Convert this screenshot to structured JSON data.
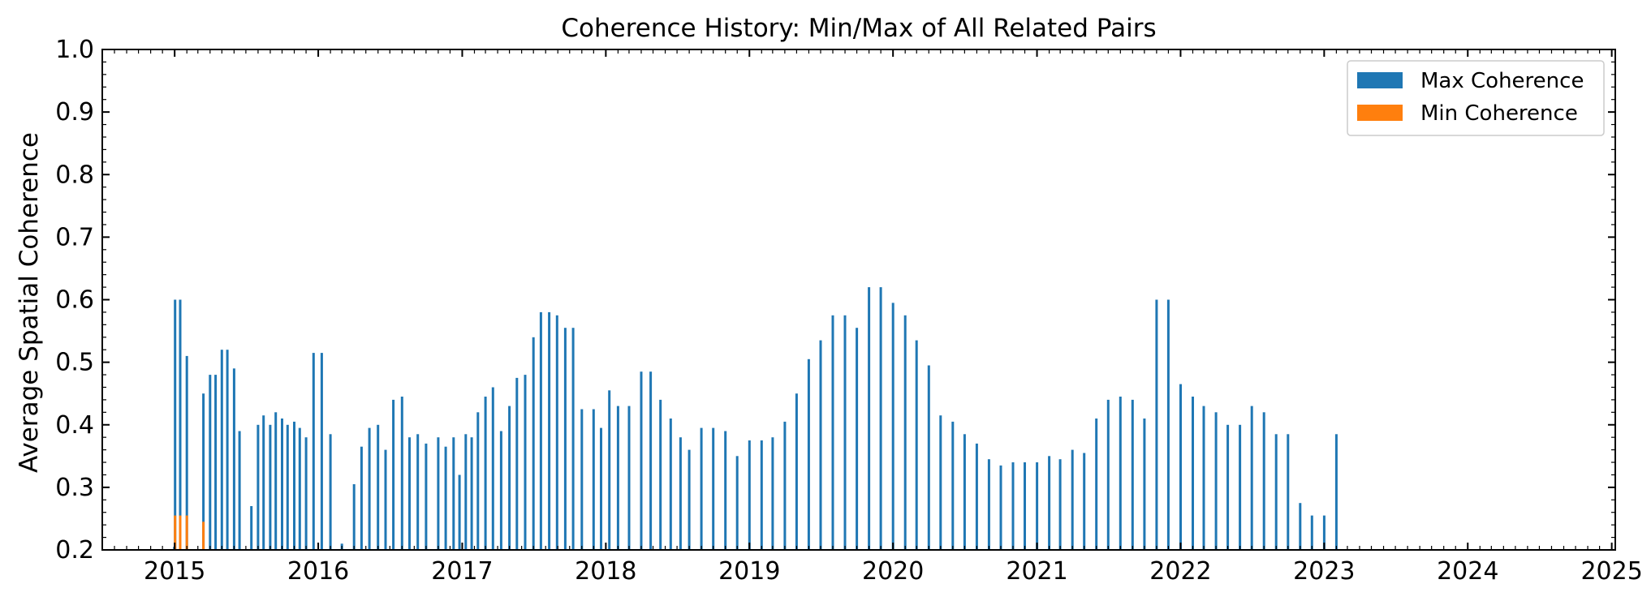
{
  "chart_data": {
    "type": "bar",
    "title": "Coherence History: Min/Max of All Related Pairs",
    "xlabel": "",
    "ylabel": "Average Spatial Coherence",
    "ylim": [
      0.2,
      1.0
    ],
    "xlim": [
      "2014-07-01",
      "2025-01-10"
    ],
    "x_ticks": [
      "2015",
      "2016",
      "2017",
      "2018",
      "2019",
      "2020",
      "2021",
      "2022",
      "2023",
      "2024",
      "2025"
    ],
    "y_ticks": [
      "0.2",
      "0.3",
      "0.4",
      "0.5",
      "0.6",
      "0.7",
      "0.8",
      "0.9",
      "1.0"
    ],
    "grid": false,
    "legend_position": "top-right",
    "colors": {
      "max": "#1f77b4",
      "min": "#ff7f0e"
    },
    "series": [
      {
        "name": "Max Coherence",
        "points": [
          [
            "2014-12-31",
            0.205
          ],
          [
            "2015-01-02",
            0.6
          ],
          [
            "2015-01-15",
            0.6
          ],
          [
            "2015-02-01",
            0.51
          ],
          [
            "2015-03-15",
            0.45
          ],
          [
            "2015-04-01",
            0.48
          ],
          [
            "2015-04-15",
            0.48
          ],
          [
            "2015-05-01",
            0.52
          ],
          [
            "2015-05-15",
            0.52
          ],
          [
            "2015-06-01",
            0.49
          ],
          [
            "2015-06-15",
            0.39
          ],
          [
            "2015-07-15",
            0.27
          ],
          [
            "2015-08-01",
            0.4
          ],
          [
            "2015-08-15",
            0.415
          ],
          [
            "2015-09-01",
            0.4
          ],
          [
            "2015-09-15",
            0.42
          ],
          [
            "2015-10-01",
            0.41
          ],
          [
            "2015-10-15",
            0.4
          ],
          [
            "2015-11-01",
            0.405
          ],
          [
            "2015-11-15",
            0.395
          ],
          [
            "2015-12-01",
            0.38
          ],
          [
            "2015-12-20",
            0.515
          ],
          [
            "2016-01-10",
            0.515
          ],
          [
            "2016-02-01",
            0.385
          ],
          [
            "2016-03-01",
            0.21
          ],
          [
            "2016-04-01",
            0.305
          ],
          [
            "2016-04-20",
            0.365
          ],
          [
            "2016-05-10",
            0.395
          ],
          [
            "2016-06-01",
            0.4
          ],
          [
            "2016-06-20",
            0.36
          ],
          [
            "2016-07-10",
            0.44
          ],
          [
            "2016-08-01",
            0.445
          ],
          [
            "2016-08-20",
            0.38
          ],
          [
            "2016-09-10",
            0.385
          ],
          [
            "2016-10-01",
            0.37
          ],
          [
            "2016-11-01",
            0.38
          ],
          [
            "2016-11-20",
            0.365
          ],
          [
            "2016-12-10",
            0.38
          ],
          [
            "2016-12-25",
            0.32
          ],
          [
            "2017-01-10",
            0.385
          ],
          [
            "2017-01-25",
            0.38
          ],
          [
            "2017-02-10",
            0.42
          ],
          [
            "2017-03-01",
            0.445
          ],
          [
            "2017-03-20",
            0.46
          ],
          [
            "2017-04-10",
            0.39
          ],
          [
            "2017-05-01",
            0.43
          ],
          [
            "2017-05-20",
            0.475
          ],
          [
            "2017-06-10",
            0.48
          ],
          [
            "2017-07-01",
            0.54
          ],
          [
            "2017-07-20",
            0.58
          ],
          [
            "2017-08-10",
            0.58
          ],
          [
            "2017-08-30",
            0.575
          ],
          [
            "2017-09-20",
            0.555
          ],
          [
            "2017-10-10",
            0.555
          ],
          [
            "2017-11-01",
            0.425
          ],
          [
            "2017-12-01",
            0.425
          ],
          [
            "2017-12-20",
            0.395
          ],
          [
            "2018-01-10",
            0.455
          ],
          [
            "2018-02-01",
            0.43
          ],
          [
            "2018-03-01",
            0.43
          ],
          [
            "2018-04-01",
            0.485
          ],
          [
            "2018-04-25",
            0.485
          ],
          [
            "2018-05-20",
            0.44
          ],
          [
            "2018-06-15",
            0.41
          ],
          [
            "2018-07-10",
            0.38
          ],
          [
            "2018-08-01",
            0.36
          ],
          [
            "2018-09-01",
            0.395
          ],
          [
            "2018-10-01",
            0.395
          ],
          [
            "2018-11-01",
            0.39
          ],
          [
            "2018-12-01",
            0.35
          ],
          [
            "2019-01-01",
            0.375
          ],
          [
            "2019-02-01",
            0.375
          ],
          [
            "2019-03-01",
            0.38
          ],
          [
            "2019-04-01",
            0.405
          ],
          [
            "2019-05-01",
            0.45
          ],
          [
            "2019-06-01",
            0.505
          ],
          [
            "2019-07-01",
            0.535
          ],
          [
            "2019-08-01",
            0.575
          ],
          [
            "2019-09-01",
            0.575
          ],
          [
            "2019-10-01",
            0.555
          ],
          [
            "2019-11-01",
            0.62
          ],
          [
            "2019-12-01",
            0.62
          ],
          [
            "2020-01-01",
            0.595
          ],
          [
            "2020-02-01",
            0.575
          ],
          [
            "2020-03-01",
            0.535
          ],
          [
            "2020-04-01",
            0.495
          ],
          [
            "2020-05-01",
            0.415
          ],
          [
            "2020-06-01",
            0.405
          ],
          [
            "2020-07-01",
            0.385
          ],
          [
            "2020-08-01",
            0.37
          ],
          [
            "2020-09-01",
            0.345
          ],
          [
            "2020-10-01",
            0.335
          ],
          [
            "2020-11-01",
            0.34
          ],
          [
            "2020-12-01",
            0.34
          ],
          [
            "2021-01-01",
            0.34
          ],
          [
            "2021-02-01",
            0.35
          ],
          [
            "2021-03-01",
            0.345
          ],
          [
            "2021-04-01",
            0.36
          ],
          [
            "2021-05-01",
            0.355
          ],
          [
            "2021-06-01",
            0.41
          ],
          [
            "2021-07-01",
            0.44
          ],
          [
            "2021-08-01",
            0.445
          ],
          [
            "2021-09-01",
            0.44
          ],
          [
            "2021-10-01",
            0.41
          ],
          [
            "2021-11-01",
            0.6
          ],
          [
            "2021-12-01",
            0.6
          ],
          [
            "2022-01-01",
            0.465
          ],
          [
            "2022-02-01",
            0.445
          ],
          [
            "2022-03-01",
            0.43
          ],
          [
            "2022-04-01",
            0.42
          ],
          [
            "2022-05-01",
            0.4
          ],
          [
            "2022-06-01",
            0.4
          ],
          [
            "2022-07-01",
            0.43
          ],
          [
            "2022-08-01",
            0.42
          ],
          [
            "2022-09-01",
            0.385
          ],
          [
            "2022-10-01",
            0.385
          ],
          [
            "2022-11-01",
            0.275
          ],
          [
            "2022-12-01",
            0.255
          ],
          [
            "2023-01-01",
            0.255
          ],
          [
            "2023-02-01",
            0.385
          ]
        ]
      },
      {
        "name": "Min Coherence",
        "points": [
          [
            "2015-01-02",
            0.255
          ],
          [
            "2015-01-15",
            0.255
          ],
          [
            "2015-02-01",
            0.255
          ],
          [
            "2015-03-15",
            0.245
          ]
        ]
      }
    ]
  }
}
